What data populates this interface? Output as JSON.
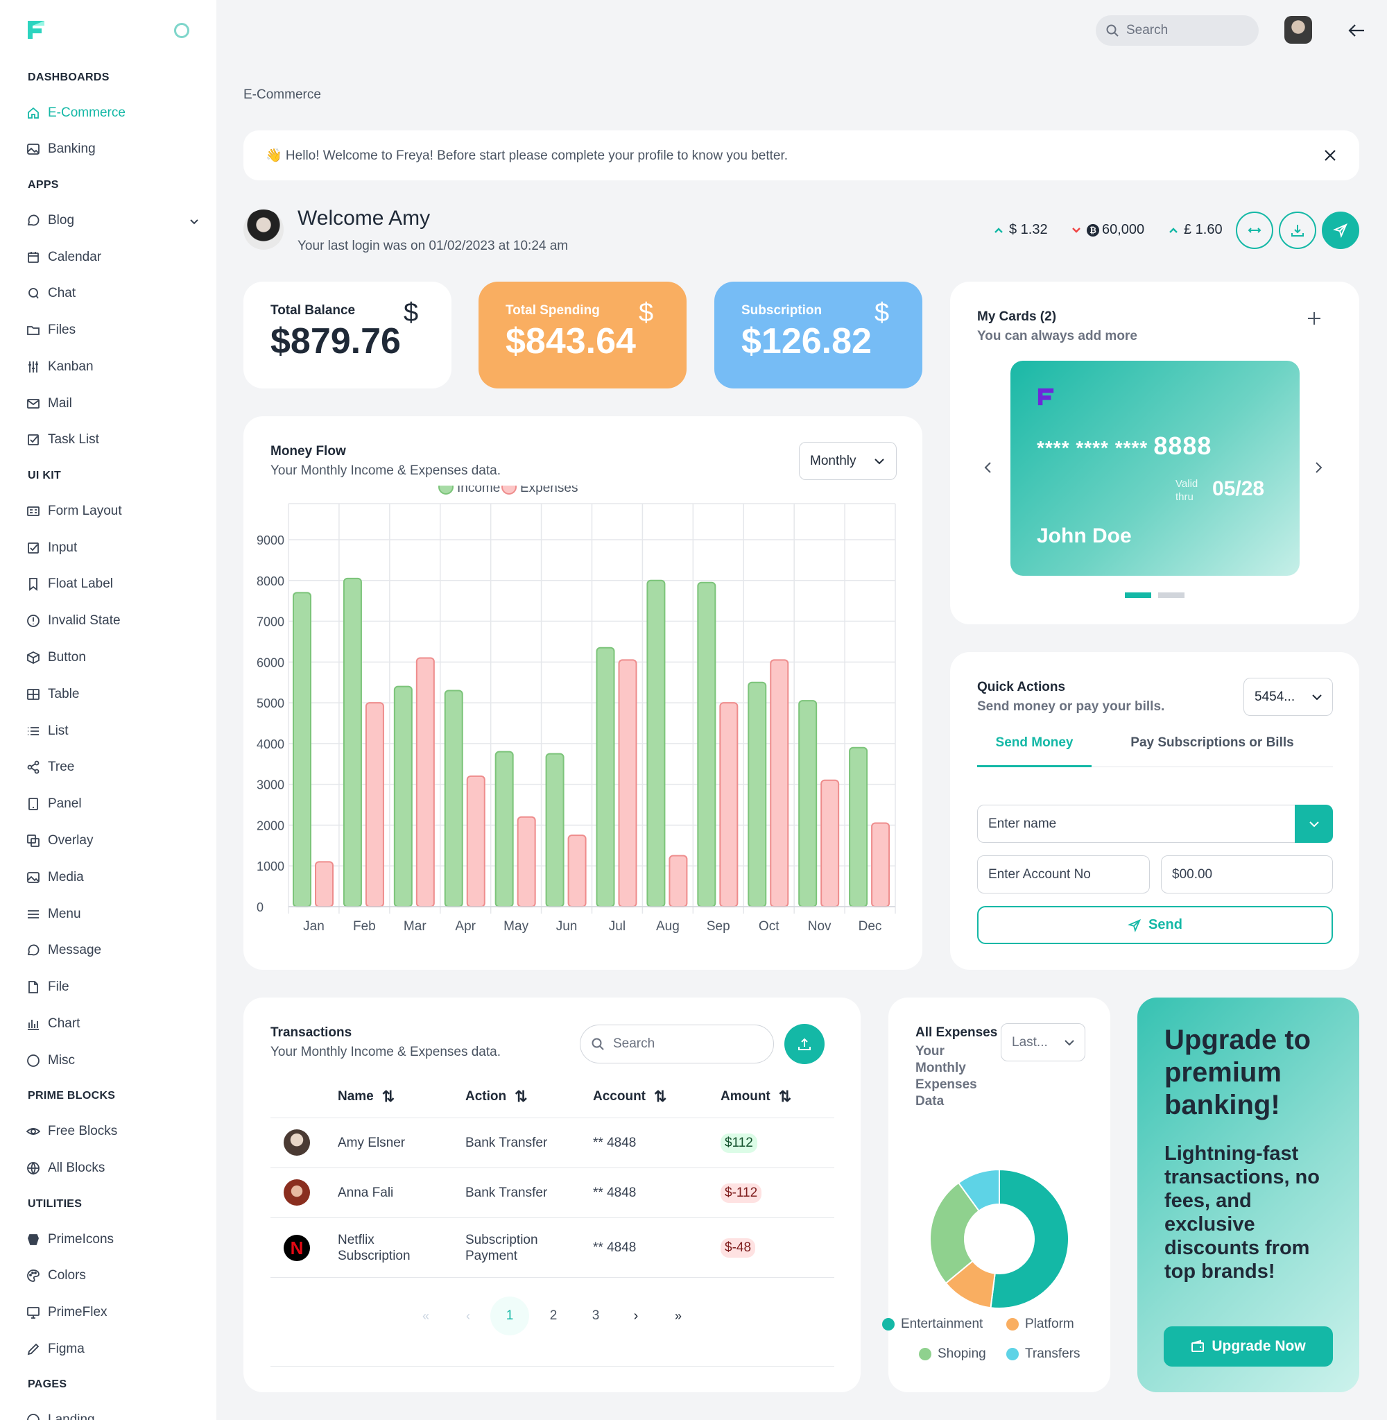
{
  "colors": {
    "accent": "#14b8a6",
    "income": "#a7dba5",
    "expenses": "#fcc6c6",
    "spending": "#f9ae61",
    "subscription": "#76bcf5"
  },
  "sidebar": {
    "sections": {
      "dashboards": "DASHBOARDS",
      "apps": "APPS",
      "uikit": "UI KIT",
      "primeblocks": "PRIME BLOCKS",
      "utilities": "UTILITIES",
      "pages": "PAGES"
    },
    "items": {
      "ecommerce": "E-Commerce",
      "banking": "Banking",
      "blog": "Blog",
      "calendar": "Calendar",
      "chat": "Chat",
      "files": "Files",
      "kanban": "Kanban",
      "mail": "Mail",
      "tasklist": "Task List",
      "formlayout": "Form Layout",
      "input": "Input",
      "floatlabel": "Float Label",
      "invalidstate": "Invalid State",
      "button": "Button",
      "table": "Table",
      "list": "List",
      "tree": "Tree",
      "panel": "Panel",
      "overlay": "Overlay",
      "media": "Media",
      "menu": "Menu",
      "message": "Message",
      "file": "File",
      "chart": "Chart",
      "misc": "Misc",
      "freeblocks": "Free Blocks",
      "allblocks": "All Blocks",
      "primeicons": "PrimeIcons",
      "colors": "Colors",
      "primeflex": "PrimeFlex",
      "figma": "Figma",
      "landing": "Landing"
    }
  },
  "topbar": {
    "search_placeholder": "Search"
  },
  "breadcrumb": "E-Commerce",
  "banner": {
    "text": "👋 Hello! Welcome to Freya! Before start please complete your profile to know you better."
  },
  "welcome": {
    "title": "Welcome Amy",
    "subtitle": "Your last login was on 01/02/2023 at 10:24 am"
  },
  "rates": {
    "usd": "$ 1.32",
    "btc": "60,000",
    "gbp": "£ 1.60"
  },
  "stats": {
    "balance": {
      "label": "Total Balance",
      "value": "$879.76",
      "sym": "$"
    },
    "spending": {
      "label": "Total Spending",
      "value": "$843.64",
      "sym": "$"
    },
    "subscription": {
      "label": "Subscription",
      "value": "$126.82",
      "sym": "$"
    }
  },
  "moneyflow": {
    "title": "Money Flow",
    "subtitle": "Your Monthly Income & Expenses data.",
    "period": "Monthly"
  },
  "chart_data": {
    "type": "bar",
    "categories": [
      "Jan",
      "Feb",
      "Mar",
      "Apr",
      "May",
      "Jun",
      "Jul",
      "Aug",
      "Sep",
      "Oct",
      "Nov",
      "Dec"
    ],
    "series": [
      {
        "name": "Income",
        "values": [
          7700,
          8050,
          5400,
          5300,
          3800,
          3750,
          6350,
          8000,
          7950,
          5500,
          5050,
          3900
        ]
      },
      {
        "name": "Expenses",
        "values": [
          1100,
          5000,
          6100,
          3200,
          2200,
          1750,
          6050,
          1250,
          5000,
          6050,
          3100,
          2050
        ]
      }
    ],
    "yticks": [
      "9000",
      "8000",
      "7000",
      "6000",
      "5000",
      "4000",
      "3000",
      "2000",
      "1000",
      "0"
    ],
    "ylim": [
      0,
      9000
    ],
    "legend": "top"
  },
  "mycards": {
    "title": "My Cards (2)",
    "subtitle": "You can always add more",
    "number": "**** **** ****",
    "last4": "8888",
    "valid1": "Valid",
    "valid2": "thru",
    "expiry": "05/28",
    "holder": "John Doe"
  },
  "quick": {
    "title": "Quick Actions",
    "subtitle": "Send money or pay your bills.",
    "account_select": "5454...",
    "tab1": "Send Money",
    "tab2": "Pay Subscriptions or Bills",
    "name_ph": "Enter name",
    "acct_ph": "Enter Account No",
    "amount": "$00.00",
    "send": "Send"
  },
  "transactions": {
    "title": "Transactions",
    "subtitle": "Your Monthly Income & Expenses data.",
    "search_placeholder": "Search",
    "headers": {
      "name": "Name",
      "action": "Action",
      "account": "Account",
      "amount": "Amount"
    },
    "rows": [
      {
        "name": "Amy Elsner",
        "action": "Bank Transfer",
        "account": "** 4848",
        "amount": "$112"
      },
      {
        "name": "Anna Fali",
        "action": "Bank Transfer",
        "account": "** 4848",
        "amount": "$-112"
      },
      {
        "name1": "Netflix",
        "name2": "Subscription",
        "action1": "Subscription",
        "action2": "Payment",
        "account": "** 4848",
        "amount": "$-48"
      }
    ],
    "pages": [
      "1",
      "2",
      "3"
    ]
  },
  "expenses": {
    "title": "All Expenses",
    "sub1": "Your",
    "sub2": "Monthly",
    "sub3": "Expenses",
    "sub4": "Data",
    "period": "Last...",
    "slices": [
      {
        "name": "Entertainment",
        "value": 52,
        "color": "#14b8a6"
      },
      {
        "name": "Platform",
        "value": 12,
        "color": "#f9ae61"
      },
      {
        "name": "Shoping",
        "value": 26,
        "color": "#8fd18e"
      },
      {
        "name": "Transfers",
        "value": 10,
        "color": "#5ed3e6"
      }
    ]
  },
  "upgrade": {
    "title1": "Upgrade to",
    "title2": "premium",
    "title3": "banking!",
    "body1": "Lightning-fast",
    "body2": "transactions, no",
    "body3": "fees, and",
    "body4": "exclusive",
    "body5": "discounts from",
    "body6": "top brands!",
    "button": "Upgrade Now"
  }
}
